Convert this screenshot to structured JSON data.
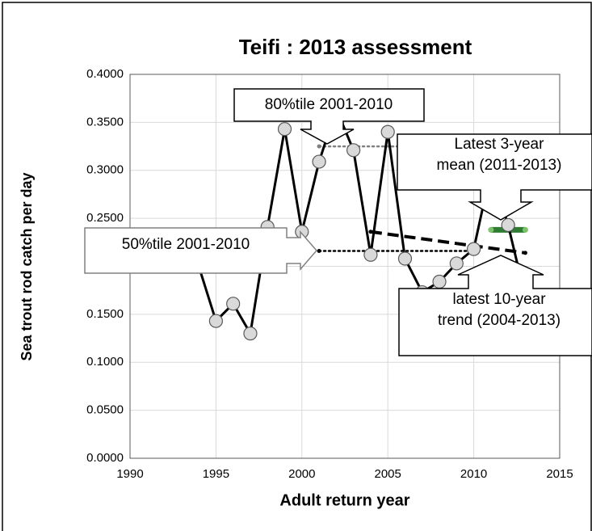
{
  "chart_data": {
    "type": "line",
    "title": "Teifi : 2013 assessment",
    "xlabel": "Adult return year",
    "ylabel": "Sea trout rod catch per day",
    "x": [
      1994,
      1995,
      1996,
      1997,
      1998,
      1999,
      2000,
      2001,
      2002,
      2003,
      2004,
      2005,
      2006,
      2007,
      2008,
      2009,
      2010,
      2011,
      2012,
      2013
    ],
    "values": [
      0.2,
      0.143,
      0.161,
      0.13,
      0.241,
      0.343,
      0.236,
      0.309,
      0.364,
      0.321,
      0.212,
      0.34,
      0.208,
      0.173,
      0.184,
      0.203,
      0.218,
      0.3,
      0.243,
      0.168
    ],
    "color": "#000000",
    "marker_color": "#d9d9d9",
    "xlim": [
      1990,
      2015
    ],
    "xticks": [
      1990,
      1995,
      2000,
      2005,
      2010,
      2015
    ],
    "ylim": [
      0,
      0.4
    ],
    "yticks": [
      {
        "value": 0,
        "label": "0.0000"
      },
      {
        "value": 0.05,
        "label": "0.0500"
      },
      {
        "value": 0.1,
        "label": "0.1000"
      },
      {
        "value": 0.15,
        "label": "0.1500"
      },
      {
        "value": 0.2,
        "label": "0.2000"
      },
      {
        "value": 0.25,
        "label": "0.2500"
      },
      {
        "value": 0.3,
        "label": "0.3000"
      },
      {
        "value": 0.35,
        "label": "0.3500"
      },
      {
        "value": 0.4,
        "label": "0.4000"
      }
    ],
    "grid": true,
    "lines": [
      {
        "x": [
          2001,
          2010
        ],
        "values": [
          0.325,
          0.325
        ],
        "color": "#808080",
        "style": "dotted"
      },
      {
        "x": [
          2001,
          2010
        ],
        "values": [
          0.216,
          0.216
        ],
        "color": "#000000",
        "style": "dotted"
      },
      {
        "x": [
          2004,
          2013
        ],
        "values": [
          0.236,
          0.214
        ],
        "color": "#000000",
        "style": "dashed"
      },
      {
        "x": [
          2011,
          2013
        ],
        "values": [
          0.238,
          0.238
        ],
        "color": "#2e7d32",
        "style": "solid"
      }
    ],
    "annotations": [
      {
        "lines": [
          "80%tile 2001-2010"
        ]
      },
      {
        "lines": [
          "Latest 3-year",
          "mean (2011-2013)"
        ]
      },
      {
        "lines": [
          "50%tile 2001-2010"
        ]
      },
      {
        "lines": [
          "latest 10-year",
          "trend (2004-2013)"
        ]
      }
    ]
  }
}
